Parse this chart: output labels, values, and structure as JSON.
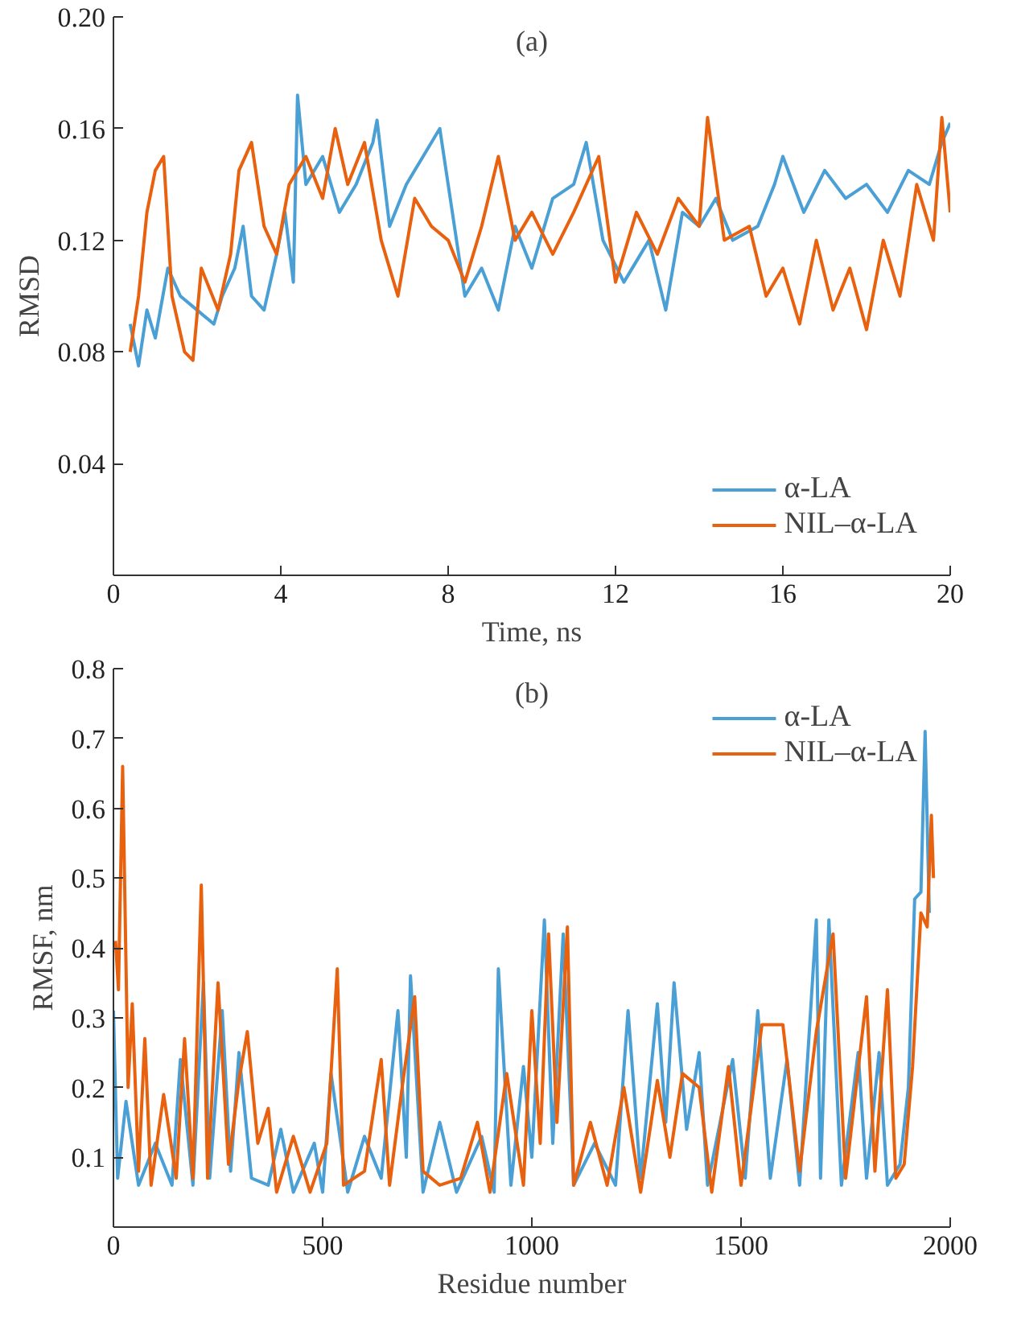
{
  "chart_data": [
    {
      "type": "line",
      "title": "(a)",
      "xlabel": "Time, ns",
      "ylabel": "RMSD",
      "xlim": [
        0,
        20
      ],
      "xticks": [
        0,
        4,
        8,
        12,
        16,
        20
      ],
      "ylim": [
        0,
        0.2
      ],
      "yticks": [
        0.04,
        0.08,
        0.12,
        0.16,
        {
          "value": 0.2,
          "label": "0.20"
        }
      ],
      "grid": false,
      "legend": "bottom right",
      "series": [
        {
          "name": "α-LA",
          "color": "#4a9fd5",
          "x": [
            0.4,
            0.6,
            0.8,
            1.0,
            1.3,
            1.6,
            2.0,
            2.4,
            2.6,
            2.9,
            3.1,
            3.3,
            3.6,
            3.9,
            4.1,
            4.3,
            4.4,
            4.6,
            5.0,
            5.4,
            5.8,
            6.2,
            6.3,
            6.6,
            7.0,
            7.4,
            7.8,
            8.0,
            8.4,
            8.8,
            9.2,
            9.6,
            10.0,
            10.5,
            11.0,
            11.3,
            11.7,
            12.2,
            12.8,
            13.2,
            13.6,
            14.0,
            14.4,
            14.8,
            15.4,
            15.8,
            16.0,
            16.5,
            17.0,
            17.5,
            18.0,
            18.5,
            19.0,
            19.5,
            19.8,
            20.0
          ],
          "values": [
            0.09,
            0.075,
            0.095,
            0.085,
            0.11,
            0.1,
            0.095,
            0.09,
            0.1,
            0.11,
            0.125,
            0.1,
            0.095,
            0.115,
            0.13,
            0.105,
            0.172,
            0.14,
            0.15,
            0.13,
            0.14,
            0.155,
            0.163,
            0.125,
            0.14,
            0.15,
            0.16,
            0.14,
            0.1,
            0.11,
            0.095,
            0.125,
            0.11,
            0.135,
            0.14,
            0.155,
            0.12,
            0.105,
            0.12,
            0.095,
            0.13,
            0.125,
            0.135,
            0.12,
            0.125,
            0.14,
            0.15,
            0.13,
            0.145,
            0.135,
            0.14,
            0.13,
            0.145,
            0.14,
            0.155,
            0.162
          ]
        },
        {
          "name": "NIL–α-LA",
          "color": "#e8610e",
          "x": [
            0.4,
            0.6,
            0.8,
            1.0,
            1.2,
            1.4,
            1.7,
            1.9,
            2.1,
            2.5,
            2.8,
            3.0,
            3.3,
            3.6,
            3.9,
            4.2,
            4.6,
            5.0,
            5.3,
            5.6,
            6.0,
            6.4,
            6.8,
            7.2,
            7.6,
            8.0,
            8.4,
            8.8,
            9.2,
            9.6,
            10.0,
            10.5,
            11.0,
            11.6,
            12.0,
            12.5,
            13.0,
            13.5,
            14.0,
            14.2,
            14.6,
            15.2,
            15.6,
            16.0,
            16.4,
            16.8,
            17.2,
            17.6,
            18.0,
            18.4,
            18.8,
            19.2,
            19.6,
            19.8,
            20.0
          ],
          "values": [
            0.08,
            0.1,
            0.13,
            0.145,
            0.15,
            0.1,
            0.08,
            0.077,
            0.11,
            0.095,
            0.115,
            0.145,
            0.155,
            0.125,
            0.115,
            0.14,
            0.15,
            0.135,
            0.16,
            0.14,
            0.155,
            0.12,
            0.1,
            0.135,
            0.125,
            0.12,
            0.105,
            0.125,
            0.15,
            0.12,
            0.13,
            0.115,
            0.13,
            0.15,
            0.105,
            0.13,
            0.115,
            0.135,
            0.125,
            0.164,
            0.12,
            0.125,
            0.1,
            0.11,
            0.09,
            0.12,
            0.095,
            0.11,
            0.088,
            0.12,
            0.1,
            0.14,
            0.12,
            0.164,
            0.13
          ]
        }
      ]
    },
    {
      "type": "line",
      "title": "(b)",
      "xlabel": "Residue number",
      "ylabel": "RMSF, nm",
      "xlim": [
        0,
        2000
      ],
      "xticks": [
        0,
        500,
        1000,
        1500,
        2000
      ],
      "ylim": [
        0,
        0.8
      ],
      "yticks": [
        0.1,
        0.2,
        0.3,
        0.4,
        0.5,
        0.6,
        0.7,
        0.8
      ],
      "grid": false,
      "legend": "top right",
      "series": [
        {
          "name": "α-LA",
          "color": "#4a9fd5",
          "x": [
            0,
            10,
            30,
            60,
            100,
            140,
            160,
            190,
            215,
            230,
            260,
            280,
            300,
            330,
            370,
            400,
            430,
            480,
            500,
            520,
            560,
            600,
            640,
            680,
            700,
            710,
            740,
            780,
            820,
            880,
            910,
            920,
            950,
            980,
            1000,
            1030,
            1050,
            1075,
            1100,
            1150,
            1200,
            1230,
            1260,
            1300,
            1320,
            1340,
            1370,
            1400,
            1420,
            1480,
            1510,
            1540,
            1570,
            1610,
            1640,
            1680,
            1690,
            1710,
            1740,
            1780,
            1800,
            1830,
            1850,
            1880,
            1900,
            1915,
            1930,
            1940,
            1950
          ],
          "values": [
            0.31,
            0.07,
            0.18,
            0.06,
            0.12,
            0.06,
            0.24,
            0.06,
            0.35,
            0.07,
            0.31,
            0.08,
            0.25,
            0.07,
            0.06,
            0.14,
            0.05,
            0.12,
            0.05,
            0.22,
            0.05,
            0.13,
            0.07,
            0.31,
            0.1,
            0.36,
            0.05,
            0.15,
            0.05,
            0.13,
            0.05,
            0.37,
            0.06,
            0.23,
            0.1,
            0.44,
            0.12,
            0.42,
            0.06,
            0.12,
            0.06,
            0.31,
            0.07,
            0.32,
            0.15,
            0.35,
            0.14,
            0.25,
            0.06,
            0.24,
            0.07,
            0.31,
            0.07,
            0.24,
            0.06,
            0.44,
            0.07,
            0.44,
            0.06,
            0.25,
            0.07,
            0.25,
            0.06,
            0.09,
            0.2,
            0.47,
            0.48,
            0.71,
            0.45
          ]
        },
        {
          "name": "NIL–α-LA",
          "color": "#e8610e",
          "x": [
            5,
            12,
            22,
            35,
            45,
            60,
            75,
            90,
            120,
            150,
            170,
            190,
            210,
            225,
            250,
            275,
            300,
            320,
            345,
            370,
            390,
            430,
            470,
            510,
            535,
            550,
            600,
            640,
            660,
            690,
            720,
            740,
            780,
            830,
            870,
            900,
            940,
            980,
            1000,
            1020,
            1040,
            1060,
            1085,
            1100,
            1140,
            1180,
            1220,
            1260,
            1300,
            1330,
            1360,
            1400,
            1430,
            1470,
            1500,
            1550,
            1600,
            1640,
            1680,
            1720,
            1750,
            1800,
            1820,
            1850,
            1870,
            1890,
            1910,
            1930,
            1945,
            1955,
            1960
          ],
          "values": [
            0.41,
            0.34,
            0.66,
            0.2,
            0.32,
            0.08,
            0.27,
            0.06,
            0.19,
            0.07,
            0.27,
            0.07,
            0.49,
            0.07,
            0.35,
            0.09,
            0.21,
            0.28,
            0.12,
            0.17,
            0.05,
            0.13,
            0.05,
            0.12,
            0.37,
            0.06,
            0.08,
            0.24,
            0.06,
            0.2,
            0.33,
            0.08,
            0.06,
            0.07,
            0.15,
            0.05,
            0.22,
            0.06,
            0.31,
            0.12,
            0.42,
            0.15,
            0.43,
            0.06,
            0.15,
            0.06,
            0.2,
            0.05,
            0.21,
            0.1,
            0.22,
            0.2,
            0.05,
            0.23,
            0.06,
            0.29,
            0.29,
            0.08,
            0.28,
            0.42,
            0.07,
            0.33,
            0.08,
            0.34,
            0.07,
            0.09,
            0.23,
            0.45,
            0.43,
            0.59,
            0.5
          ]
        }
      ]
    }
  ]
}
